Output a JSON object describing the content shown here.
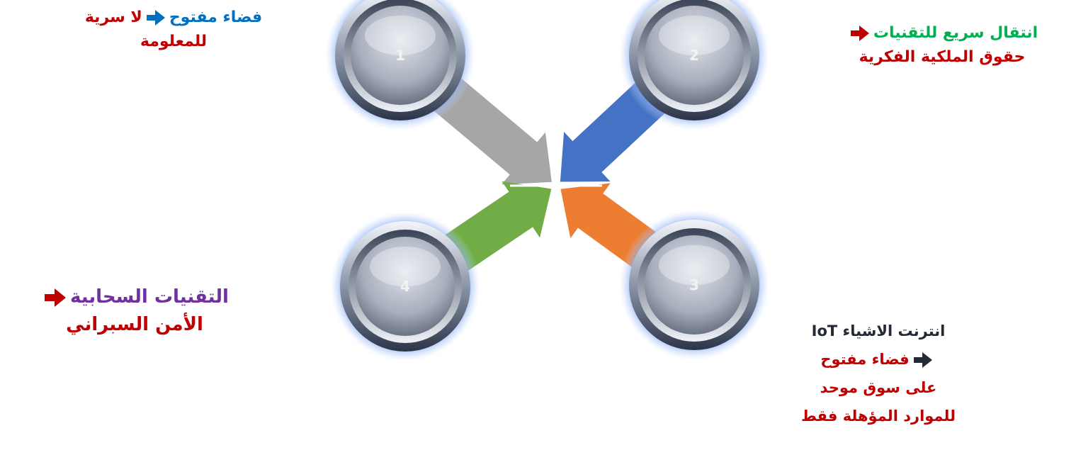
{
  "nodes": [
    {
      "label": "1"
    },
    {
      "label": "2"
    },
    {
      "label": "3"
    },
    {
      "label": "4"
    }
  ],
  "notes": [
    {
      "lead": "فضاء مفتوح",
      "result": [
        "لا سرية",
        "للمعلومة"
      ]
    },
    {
      "lead": "انتقال سريع للتقنيات",
      "result": [
        "حقوق الملكية الفكرية"
      ]
    },
    {
      "lead": "التقنيات السحابية",
      "result": [
        "الأمن السبراني"
      ]
    },
    {
      "lead": "انترنت الاشياء IoT",
      "result": [
        "فضاء مفتوح",
        "على سوق موحد",
        "للموارد المؤهلة فقط"
      ]
    }
  ]
}
